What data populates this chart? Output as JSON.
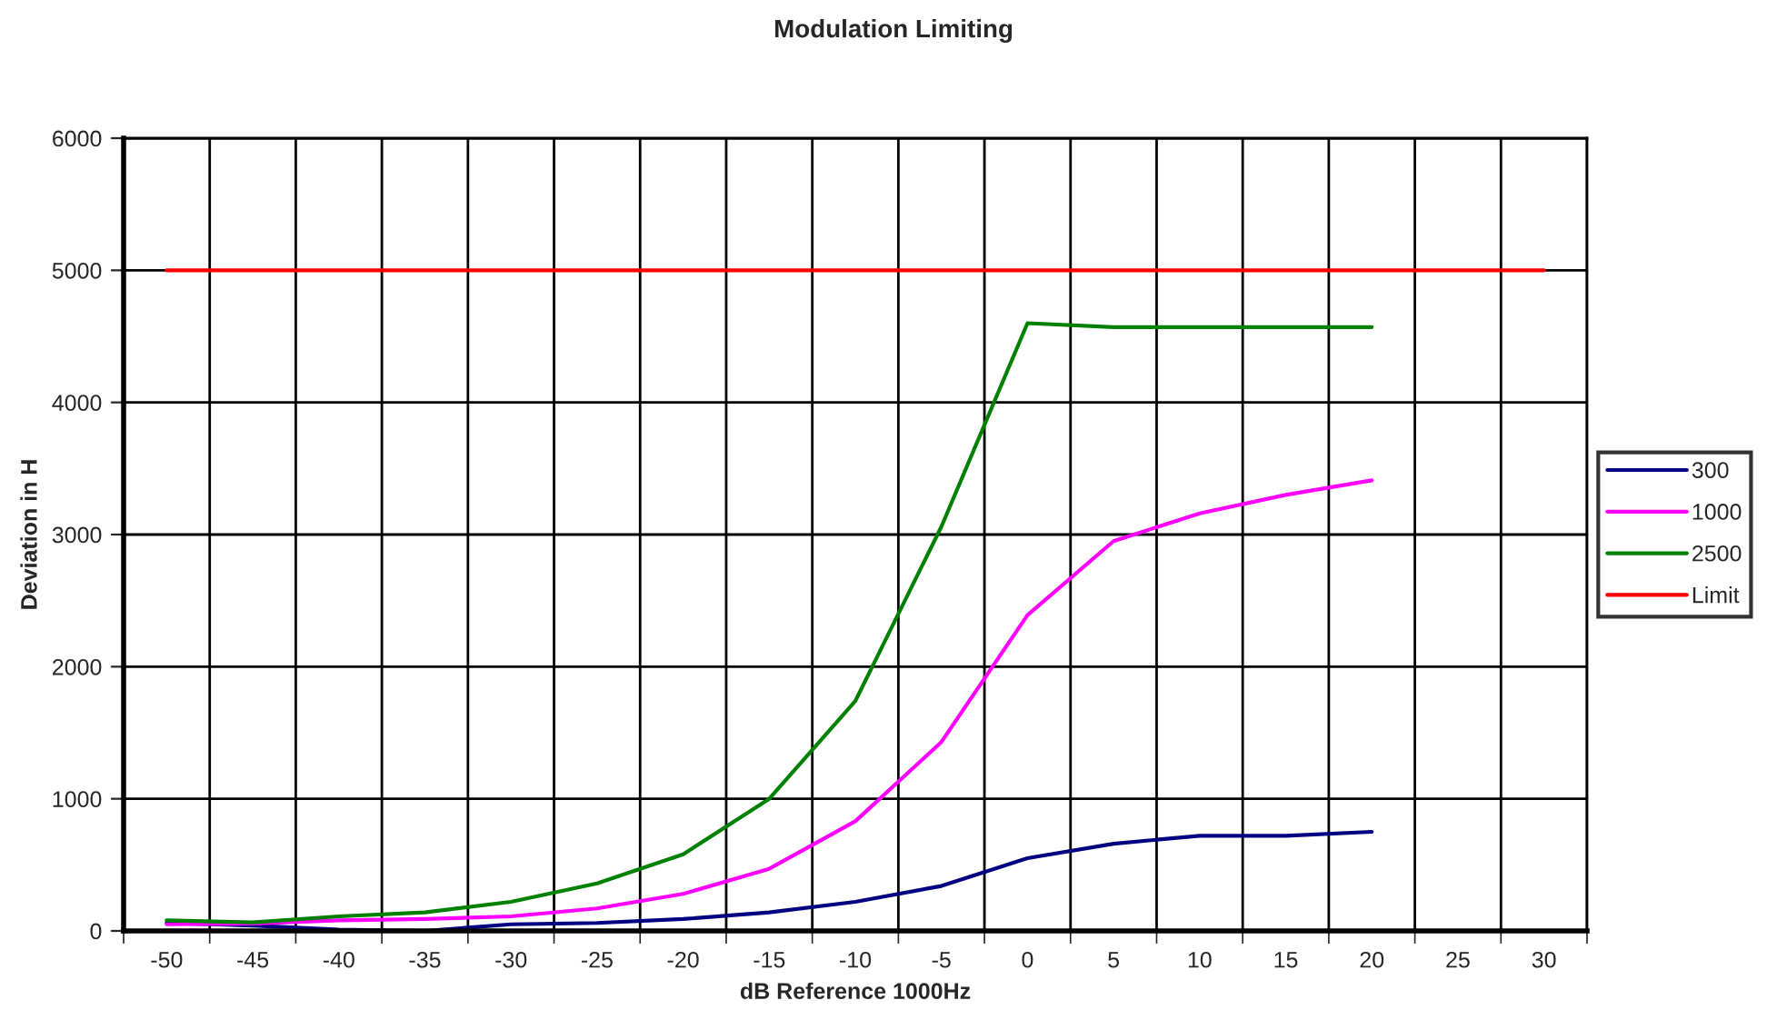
{
  "chart_data": {
    "type": "line",
    "title": "Modulation Limiting",
    "xlabel": "dB Reference 1000Hz",
    "ylabel": "Deviation in H",
    "categories": [
      "-50",
      "-45",
      "-40",
      "-35",
      "-30",
      "-25",
      "-20",
      "-15",
      "-10",
      "-5",
      "0",
      "5",
      "10",
      "15",
      "20",
      "25",
      "30"
    ],
    "series": [
      {
        "name": "300",
        "color": "#000080",
        "values": [
          60,
          40,
          10,
          0,
          50,
          60,
          90,
          140,
          220,
          340,
          550,
          660,
          720,
          720,
          750,
          null,
          null
        ]
      },
      {
        "name": "1000",
        "color": "#ff00ff",
        "values": [
          50,
          55,
          80,
          90,
          110,
          170,
          280,
          470,
          830,
          1430,
          2390,
          2950,
          3160,
          3300,
          3410,
          null,
          null
        ]
      },
      {
        "name": "2500",
        "color": "#008000",
        "values": [
          80,
          65,
          110,
          140,
          220,
          360,
          580,
          1000,
          1740,
          3060,
          4600,
          4570,
          4570,
          4570,
          4570,
          null,
          null
        ]
      },
      {
        "name": "Limit",
        "color": "#ff0000",
        "values": [
          5000,
          5000,
          5000,
          5000,
          5000,
          5000,
          5000,
          5000,
          5000,
          5000,
          5000,
          5000,
          5000,
          5000,
          5000,
          5000,
          5000
        ]
      }
    ],
    "ylim": [
      0,
      6000
    ],
    "yticks": [
      0,
      1000,
      2000,
      3000,
      4000,
      5000,
      6000
    ],
    "grid": true,
    "legend": "right",
    "marker": "none",
    "line_style": "solid"
  }
}
